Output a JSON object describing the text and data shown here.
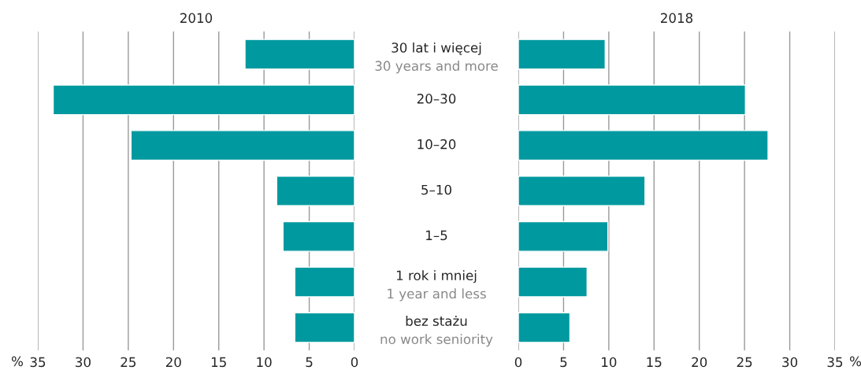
{
  "chart_data": [
    {
      "type": "bar",
      "orientation": "horizontal",
      "title": "2010",
      "xlabel": "%",
      "categories": [
        "30 lat i więcej\n30 years and more",
        "20–30",
        "10–20",
        "5–10",
        "1–5",
        "1 rok i mniej\n1 year and less",
        "bez stażu\nno work seniority"
      ],
      "series": [
        {
          "color": "#00999f",
          "values": [
            12.1,
            33.3,
            24.7,
            8.6,
            7.9,
            6.6,
            6.6
          ]
        }
      ],
      "xlim": [
        35,
        0
      ],
      "xticks": [
        35,
        30,
        25,
        20,
        15,
        10,
        5,
        0
      ],
      "grid": "x",
      "legend": false
    },
    {
      "type": "bar",
      "orientation": "horizontal",
      "title": "2018",
      "xlabel": "%",
      "categories": [
        null,
        null,
        null,
        null,
        null,
        null,
        null
      ],
      "series": [
        {
          "color": "#00999f",
          "values": [
            9.6,
            25.1,
            27.6,
            14.0,
            9.9,
            7.6,
            5.7
          ]
        }
      ],
      "xlim": [
        0,
        35
      ],
      "xticks": [
        0,
        5,
        10,
        15,
        20,
        25,
        30,
        35
      ],
      "grid": "x",
      "legend": false,
      "tick_labels": "x"
    }
  ]
}
